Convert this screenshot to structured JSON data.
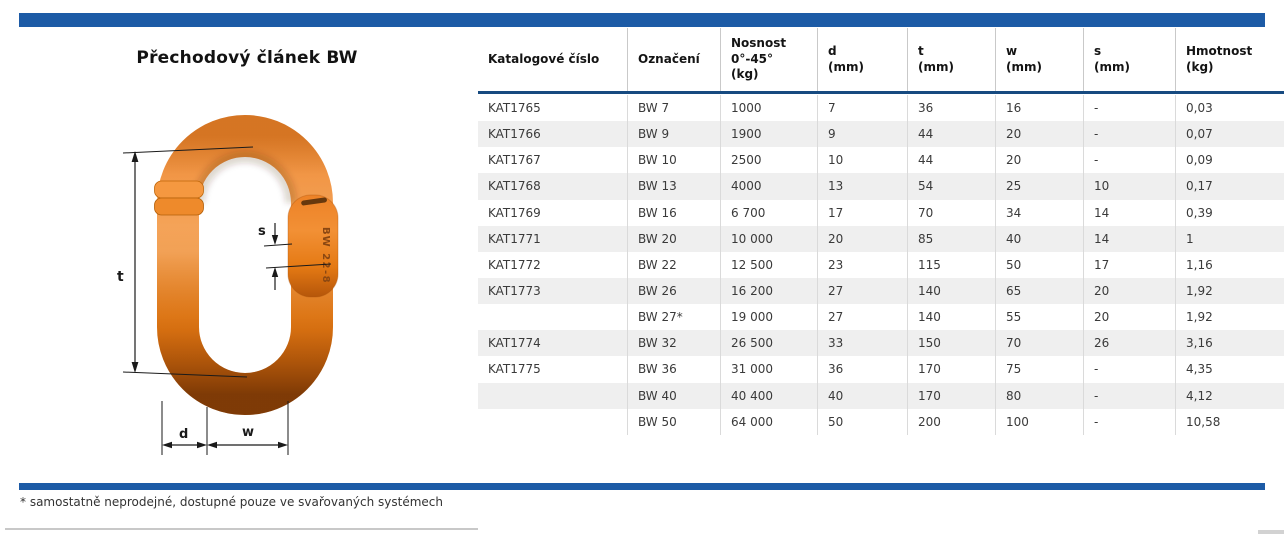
{
  "title": "Přechodový článek BW",
  "footnote": "* samostatně neprodejné, dostupné pouze ve svařovaných systémech",
  "colors": {
    "accent_bar": "#1d5ba6",
    "header_rule": "#174a80",
    "row_stripe": "#efefef",
    "link_orange": "#e87417"
  },
  "diagram": {
    "dim_t": "t",
    "dim_s": "s",
    "dim_d": "d",
    "dim_w": "w",
    "marking": "BW 22-8"
  },
  "table": {
    "headers": [
      "Katalogové číslo",
      "Označení",
      "Nosnost\n0°-45°\n(kg)",
      "d\n(mm)",
      "t\n(mm)",
      "w\n(mm)",
      "s\n(mm)",
      "Hmotnost\n(kg)"
    ],
    "rows": [
      [
        "KAT1765",
        "BW 7",
        "1000",
        "7",
        "36",
        "16",
        "-",
        "0,03"
      ],
      [
        "KAT1766",
        "BW 9",
        "1900",
        "9",
        "44",
        "20",
        "-",
        "0,07"
      ],
      [
        "KAT1767",
        "BW 10",
        "2500",
        "10",
        "44",
        "20",
        "-",
        "0,09"
      ],
      [
        "KAT1768",
        "BW 13",
        "4000",
        "13",
        "54",
        "25",
        "10",
        "0,17"
      ],
      [
        "KAT1769",
        "BW 16",
        "6 700",
        "17",
        "70",
        "34",
        "14",
        "0,39"
      ],
      [
        "KAT1771",
        "BW 20",
        "10 000",
        "20",
        "85",
        "40",
        "14",
        "1"
      ],
      [
        "KAT1772",
        "BW 22",
        "12 500",
        "23",
        "115",
        "50",
        "17",
        "1,16"
      ],
      [
        "KAT1773",
        "BW 26",
        "16 200",
        "27",
        "140",
        "65",
        "20",
        "1,92"
      ],
      [
        "",
        "BW 27*",
        "19 000",
        "27",
        "140",
        "55",
        "20",
        "1,92"
      ],
      [
        "KAT1774",
        "BW 32",
        "26 500",
        "33",
        "150",
        "70",
        "26",
        "3,16"
      ],
      [
        "KAT1775",
        "BW 36",
        "31 000",
        "36",
        "170",
        "75",
        "-",
        "4,35"
      ],
      [
        "",
        "BW 40",
        "40 400",
        "40",
        "170",
        "80",
        "-",
        "4,12"
      ],
      [
        "",
        "BW 50",
        "64 000",
        "50",
        "200",
        "100",
        "-",
        "10,58"
      ]
    ]
  }
}
